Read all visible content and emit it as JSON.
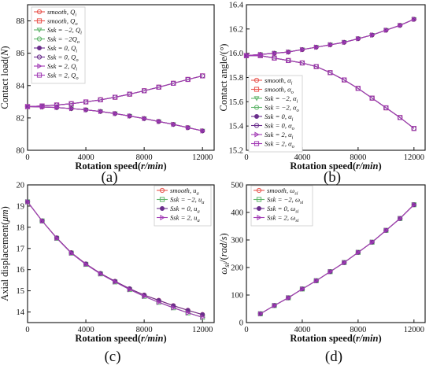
{
  "chart_data": [
    {
      "panel_label": "(a)",
      "type": "line",
      "xlabel": "Rotation speed(r/min)",
      "ylabel": "Contact load(N)",
      "x": [
        0,
        1000,
        2000,
        3000,
        4000,
        5000,
        6000,
        7000,
        8000,
        9000,
        10000,
        11000,
        12000
      ],
      "xlim": [
        0,
        12800
      ],
      "ylim": [
        80,
        89
      ],
      "xticks": [
        "0",
        "4000",
        "8000",
        "12000"
      ],
      "yticks": [
        "80",
        "82",
        "84",
        "86",
        "88"
      ],
      "grid": false,
      "legend_position": "top-left",
      "legend": [
        {
          "label": "smooth, Q_i",
          "color": "#e8554e",
          "marker": "o"
        },
        {
          "label": "smooth, Q_o",
          "color": "#e8554e",
          "marker": "s"
        },
        {
          "label": "Ssk = −2, Q_i",
          "color": "#5fb56a",
          "marker": "v"
        },
        {
          "label": "Ssk = −2Q_o",
          "color": "#5fb56a",
          "marker": "o"
        },
        {
          "label": "Ssk = 0, Q_i",
          "color": "#6a2e8c",
          "marker": "*"
        },
        {
          "label": "Ssk = 0, Q_o",
          "color": "#6a2e8c",
          "marker": "o"
        },
        {
          "label": "Ssk = 2, Q_i",
          "color": "#a23bb5",
          "marker": ">"
        },
        {
          "label": "Ssk = 2, Q_o",
          "color": "#a23bb5",
          "marker": "s"
        }
      ],
      "series": [
        {
          "values": [
            82.7,
            82.68,
            82.64,
            82.58,
            82.5,
            82.4,
            82.27,
            82.12,
            81.96,
            81.78,
            81.6,
            81.4,
            81.2
          ]
        },
        {
          "values": [
            82.7,
            82.74,
            82.8,
            82.88,
            82.99,
            83.12,
            83.28,
            83.47,
            83.68,
            83.9,
            84.14,
            84.38,
            84.6
          ]
        }
      ]
    },
    {
      "panel_label": "(b)",
      "type": "line",
      "xlabel": "Rotation speed(r/min)",
      "ylabel": "Contact angle/(°)",
      "x": [
        0,
        1000,
        2000,
        3000,
        4000,
        5000,
        6000,
        7000,
        8000,
        9000,
        10000,
        11000,
        12000
      ],
      "xlim": [
        0,
        12800
      ],
      "ylim": [
        15.2,
        16.4
      ],
      "xticks": [
        "0",
        "4000",
        "8000",
        "12000"
      ],
      "yticks": [
        "15.2",
        "15.4",
        "15.6",
        "15.8",
        "16.0",
        "16.2",
        "16.4"
      ],
      "grid": false,
      "legend_position": "bottom-left",
      "legend": [
        {
          "label": "smooth, α_i",
          "color": "#e8554e",
          "marker": "o"
        },
        {
          "label": "smooth, α_o",
          "color": "#e8554e",
          "marker": "s"
        },
        {
          "label": "Ssk = −2, α_i",
          "color": "#5fb56a",
          "marker": "v"
        },
        {
          "label": "Ssk = −2, α_o",
          "color": "#5fb56a",
          "marker": "o"
        },
        {
          "label": "Ssk = 0, α_i",
          "color": "#6a2e8c",
          "marker": "*"
        },
        {
          "label": "Ssk = 0, α_o",
          "color": "#6a2e8c",
          "marker": "o"
        },
        {
          "label": "Ssk = 2, α_i",
          "color": "#a23bb5",
          "marker": ">"
        },
        {
          "label": "Ssk = 2, α_o",
          "color": "#a23bb5",
          "marker": "s"
        }
      ],
      "series": [
        {
          "values": [
            15.98,
            15.99,
            16.0,
            16.01,
            16.03,
            16.05,
            16.07,
            16.09,
            16.12,
            16.15,
            16.19,
            16.23,
            16.28
          ]
        },
        {
          "values": [
            15.98,
            15.98,
            15.96,
            15.94,
            15.92,
            15.89,
            15.84,
            15.78,
            15.71,
            15.63,
            15.55,
            15.47,
            15.38
          ]
        }
      ]
    },
    {
      "panel_label": "(c)",
      "type": "line",
      "xlabel": "Rotation speed(r/min)",
      "ylabel": "Axial displacement(μm)",
      "x": [
        0,
        1000,
        2000,
        3000,
        4000,
        5000,
        6000,
        7000,
        8000,
        9000,
        10000,
        11000,
        12000
      ],
      "xlim": [
        0,
        12800
      ],
      "ylim": [
        13.5,
        20
      ],
      "xticks": [
        "0",
        "4000",
        "8000",
        "12000"
      ],
      "yticks": [
        "14",
        "15",
        "16",
        "17",
        "18",
        "19",
        "20"
      ],
      "grid": false,
      "legend_position": "top-right",
      "legend": [
        {
          "label": "smooth, u_a",
          "color": "#e8554e",
          "marker": "o"
        },
        {
          "label": "Ssk = −2, u_a",
          "color": "#5fb56a",
          "marker": "s"
        },
        {
          "label": "Ssk = 0, u_a",
          "color": "#6a2e8c",
          "marker": "*"
        },
        {
          "label": "Ssk = 2, u_a",
          "color": "#a23bb5",
          "marker": ">"
        }
      ],
      "series": [
        {
          "values": [
            19.2,
            18.3,
            17.5,
            16.8,
            16.27,
            15.82,
            15.45,
            15.1,
            14.8,
            14.55,
            14.3,
            14.08,
            13.88
          ]
        },
        {
          "values": [
            19.2,
            18.3,
            17.48,
            16.78,
            16.25,
            15.8,
            15.42,
            15.06,
            14.74,
            14.46,
            14.2,
            13.96,
            13.75
          ]
        }
      ]
    },
    {
      "panel_label": "(d)",
      "type": "line",
      "xlabel": "Rotation speed(r/min)",
      "ylabel": "ω_si/(rad/s)",
      "x": [
        1000,
        2000,
        3000,
        4000,
        5000,
        6000,
        7000,
        8000,
        9000,
        10000,
        11000,
        12000
      ],
      "xlim": [
        0,
        12800
      ],
      "ylim": [
        0,
        500
      ],
      "xticks": [
        "0",
        "4000",
        "8000",
        "12000"
      ],
      "yticks": [
        "0",
        "100",
        "200",
        "300",
        "400",
        "500"
      ],
      "grid": false,
      "legend_position": "top-left",
      "legend": [
        {
          "label": "smooth, ω_si",
          "color": "#e8554e",
          "marker": "o"
        },
        {
          "label": "Ssk = −2, ω_si",
          "color": "#5fb56a",
          "marker": "s"
        },
        {
          "label": "Ssk = 0, ω_si",
          "color": "#6a2e8c",
          "marker": "*"
        },
        {
          "label": "Ssk = 2, ω_si",
          "color": "#a23bb5",
          "marker": ">"
        }
      ],
      "series": [
        {
          "values": [
            32,
            62,
            90,
            122,
            152,
            185,
            218,
            255,
            292,
            335,
            378,
            428
          ]
        }
      ]
    }
  ]
}
